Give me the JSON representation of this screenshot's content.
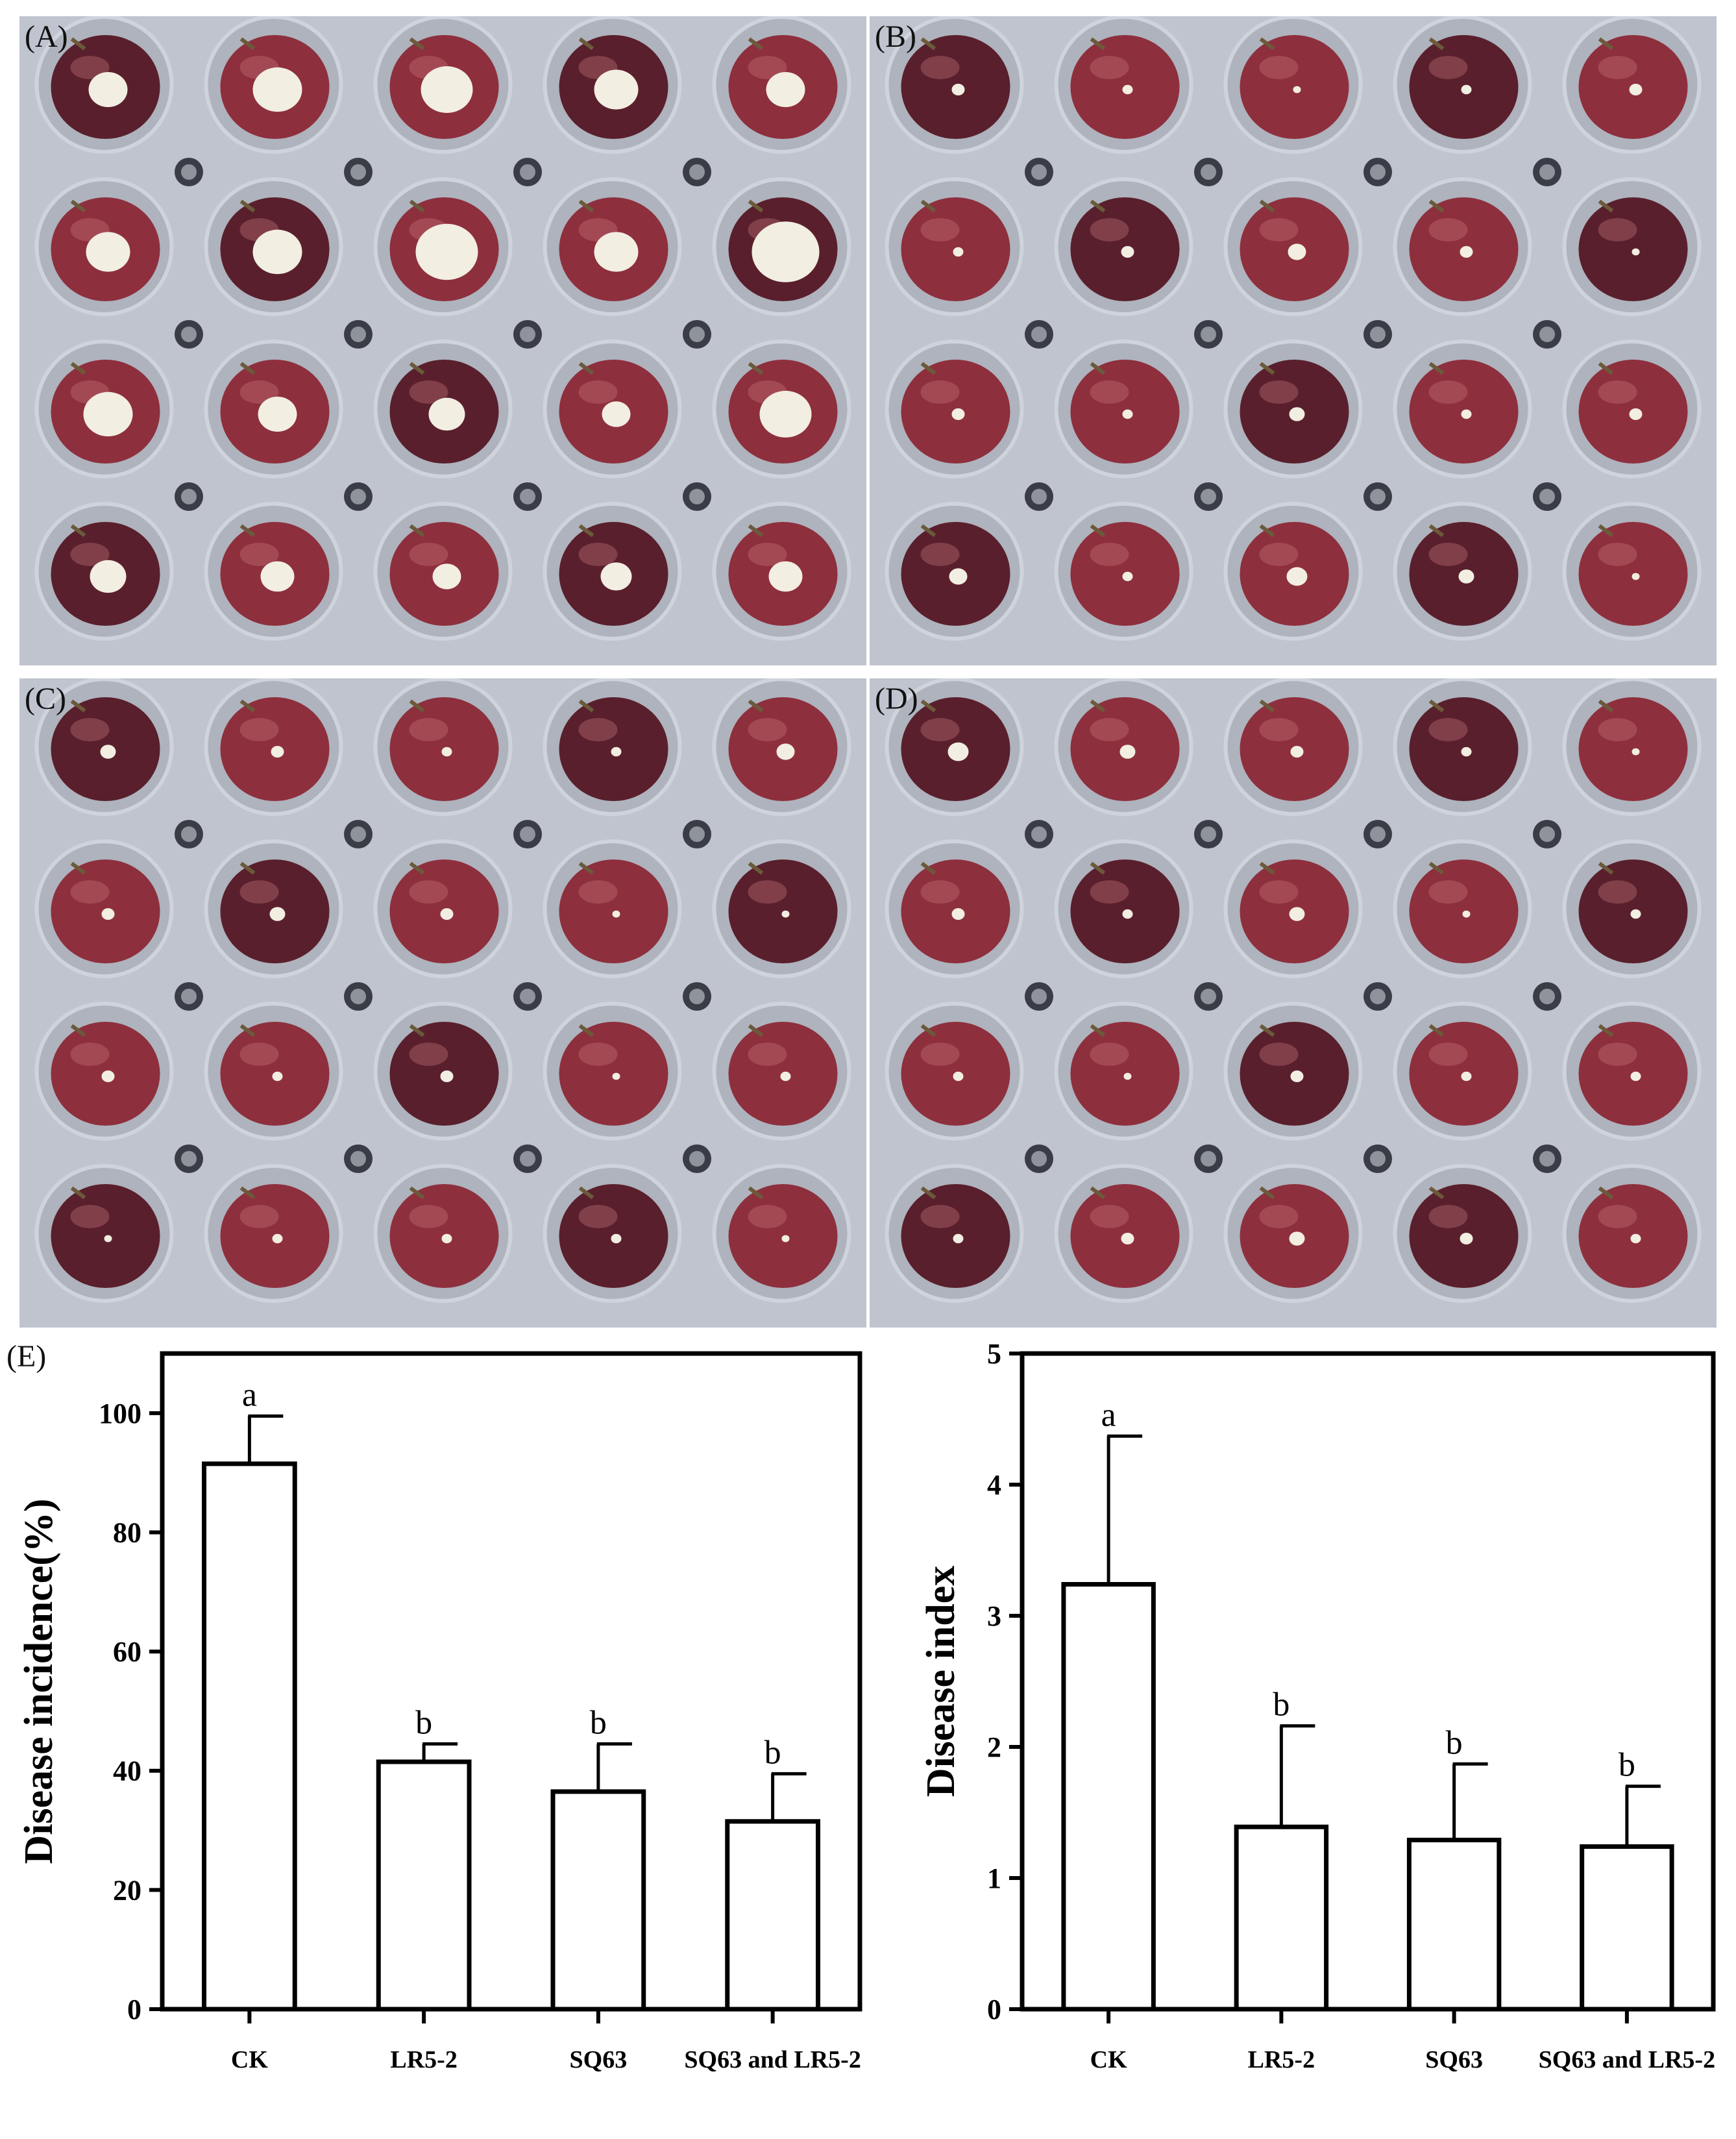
{
  "panels": [
    {
      "label": "(A)"
    },
    {
      "label": "(B)"
    },
    {
      "label": "(C)"
    },
    {
      "label": "(D)"
    }
  ],
  "chart_label": "(E)",
  "colors": {
    "tray": "#bfc4cf",
    "grape_dark": "#5a1f2c",
    "grape_red": "#8e2f3d",
    "lesion": "#f2eee2"
  },
  "chart_data": [
    {
      "type": "bar",
      "categories": [
        "CK",
        "LR5-2",
        "SQ63",
        "SQ63 and LR5-2"
      ],
      "values": [
        91.5,
        41.5,
        36.5,
        31.5
      ],
      "error": [
        8,
        3,
        8,
        8
      ],
      "significance": [
        "a",
        "b",
        "b",
        "b"
      ],
      "ylabel": "Disease incidence(%)",
      "ylim": [
        0,
        110
      ],
      "yticks": [
        "0",
        "20",
        "40",
        "60",
        "80",
        "100"
      ],
      "tick_values": [
        0,
        20,
        40,
        60,
        80,
        100
      ]
    },
    {
      "type": "bar",
      "categories": [
        "CK",
        "LR5-2",
        "SQ63",
        "SQ63 and LR5-2"
      ],
      "values": [
        3.24,
        1.39,
        1.29,
        1.24
      ],
      "error": [
        1.13,
        0.77,
        0.58,
        0.46
      ],
      "significance": [
        "a",
        "b",
        "b",
        "b"
      ],
      "ylabel": "Disease index",
      "ylim": [
        0,
        5
      ],
      "yticks": [
        "0",
        "1",
        "2",
        "3",
        "4",
        "5"
      ],
      "tick_values": [
        0,
        1,
        2,
        3,
        4,
        5
      ]
    }
  ]
}
